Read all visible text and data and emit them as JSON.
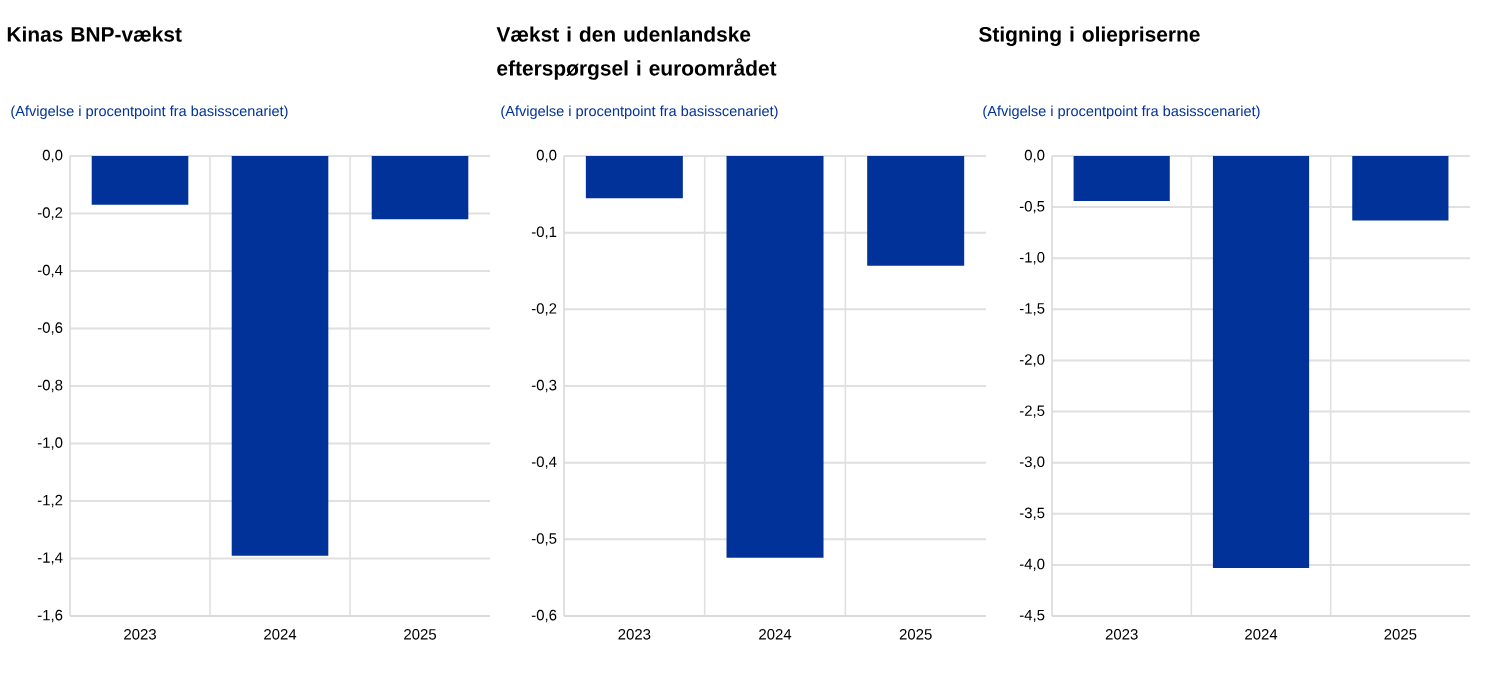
{
  "chart_data": [
    {
      "type": "bar",
      "title": "Kinas BNP-vækst",
      "subtitle": "(Afvigelse i procentpoint fra basisscenariet)",
      "categories": [
        "2023",
        "2024",
        "2025"
      ],
      "values": [
        -0.17,
        -1.39,
        -0.22
      ],
      "color": "#003299",
      "ylim": [
        -1.6,
        0
      ],
      "yticks": [
        {
          "value": -1.6,
          "label": "-1,6"
        },
        {
          "value": -1.4,
          "label": "-1,4"
        },
        {
          "value": -1.2,
          "label": "-1,2"
        },
        {
          "value": -1.0,
          "label": "-1,0"
        },
        {
          "value": -0.8,
          "label": "-0,8"
        },
        {
          "value": -0.6,
          "label": "-0,6"
        },
        {
          "value": -0.4,
          "label": "-0,4"
        },
        {
          "value": -0.2,
          "label": "-0,2"
        },
        {
          "value": 0,
          "label": "0,0"
        }
      ],
      "grid": true
    },
    {
      "type": "bar",
      "title": "Vækst i den udenlandske efterspørgsel i euroområdet",
      "subtitle": "(Afvigelse i procentpoint fra basisscenariet)",
      "categories": [
        "2023",
        "2024",
        "2025"
      ],
      "values": [
        -0.055,
        -0.524,
        -0.143
      ],
      "color": "#003299",
      "ylim": [
        -0.6,
        0
      ],
      "yticks": [
        {
          "value": -0.6,
          "label": "-0,6"
        },
        {
          "value": -0.5,
          "label": "-0,5"
        },
        {
          "value": -0.4,
          "label": "-0,4"
        },
        {
          "value": -0.3,
          "label": "-0,3"
        },
        {
          "value": -0.2,
          "label": "-0,2"
        },
        {
          "value": -0.1,
          "label": "-0,1"
        },
        {
          "value": 0,
          "label": "0,0"
        }
      ],
      "grid": true
    },
    {
      "type": "bar",
      "title": "Stigning i oliepriserne",
      "subtitle": "(Afvigelse i procentpoint fra basisscenariet)",
      "categories": [
        "2023",
        "2024",
        "2025"
      ],
      "values": [
        -0.44,
        -4.03,
        -0.63
      ],
      "color": "#003299",
      "ylim": [
        -4.5,
        0
      ],
      "yticks": [
        {
          "value": -4.5,
          "label": "-4,5"
        },
        {
          "value": -4.0,
          "label": "-4,0"
        },
        {
          "value": -3.5,
          "label": "-3,5"
        },
        {
          "value": -3.0,
          "label": "-3,0"
        },
        {
          "value": -2.5,
          "label": "-2,5"
        },
        {
          "value": -2.0,
          "label": "-2,0"
        },
        {
          "value": -1.5,
          "label": "-1,5"
        },
        {
          "value": -1.0,
          "label": "-1,0"
        },
        {
          "value": -0.5,
          "label": "-0,5"
        },
        {
          "value": 0,
          "label": "0,0"
        }
      ],
      "grid": true
    }
  ]
}
